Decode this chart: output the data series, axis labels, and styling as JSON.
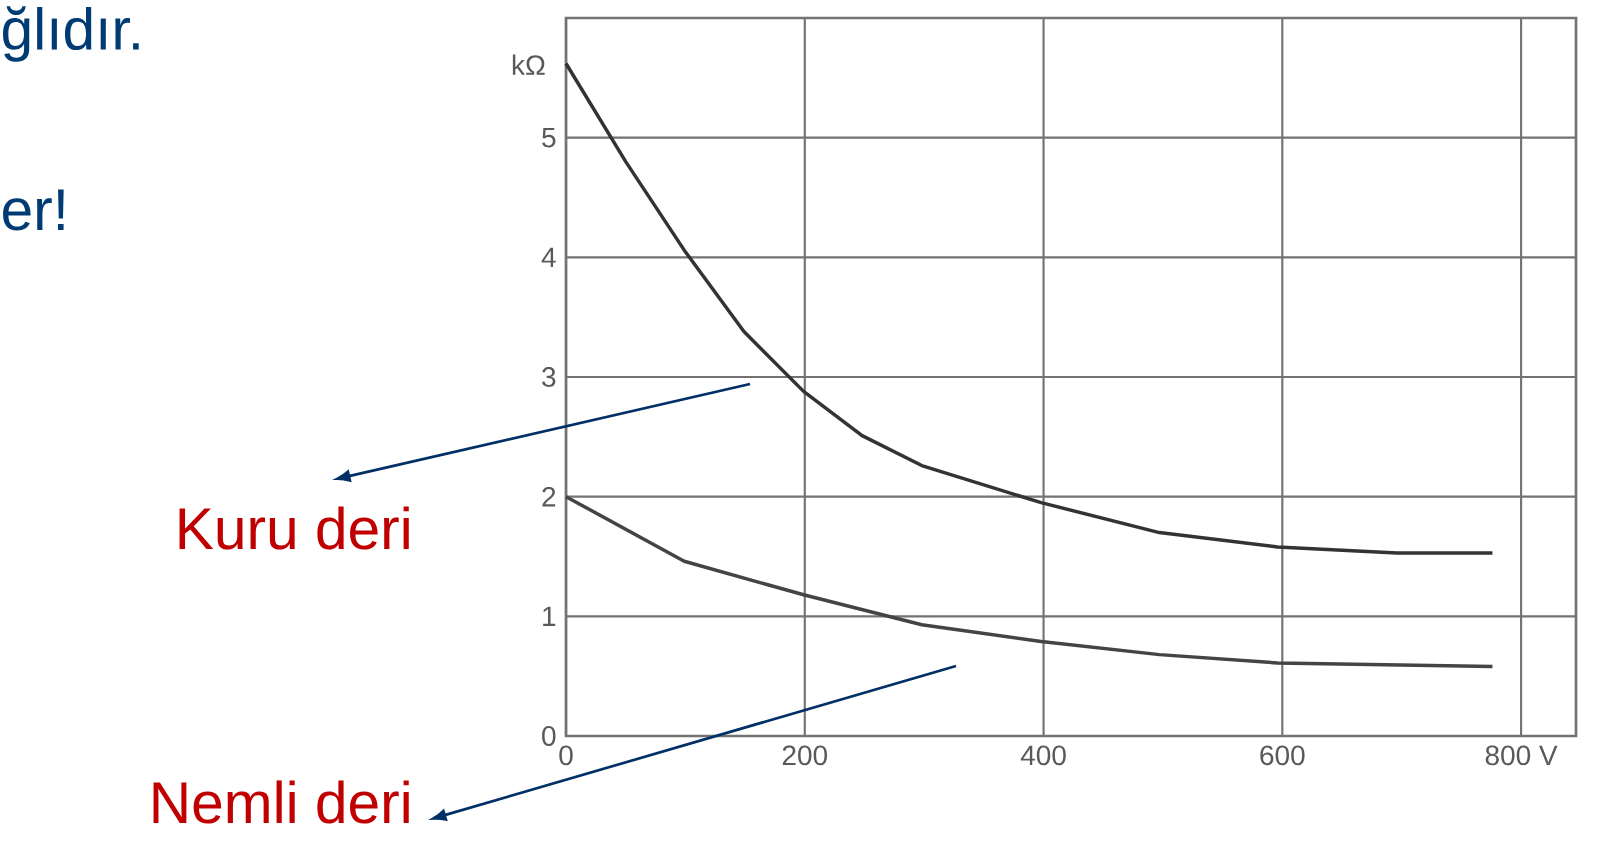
{
  "chart_data": {
    "type": "line",
    "annotations": [
      "ğlıdır.",
      "er!",
      "Kuru deri",
      "Nemli deri"
    ],
    "ylabel": "kΩ",
    "xlim": [
      0,
      846
    ],
    "ylim": [
      0,
      6
    ],
    "xticks": [
      0,
      200,
      400,
      600,
      {
        "value": 800,
        "label": "800 V"
      }
    ],
    "yticks": [
      0,
      1,
      2,
      3,
      4,
      5
    ],
    "grid": true,
    "line_style": "solid",
    "marker": "none",
    "series": [
      {
        "color": "#333333",
        "x": [
          0,
          50,
          99,
          149,
          199,
          248,
          298,
          398,
          497,
          596,
          696,
          776
        ],
        "values": [
          5.62,
          4.8,
          4.06,
          3.38,
          2.88,
          2.51,
          2.26,
          1.95,
          1.7,
          1.58,
          1.53,
          1.53
        ]
      },
      {
        "color": "#444444",
        "x": [
          0,
          99,
          199,
          298,
          398,
          497,
          596,
          776
        ],
        "values": [
          2.0,
          1.46,
          1.18,
          0.93,
          0.79,
          0.68,
          0.61,
          0.58
        ]
      }
    ]
  }
}
